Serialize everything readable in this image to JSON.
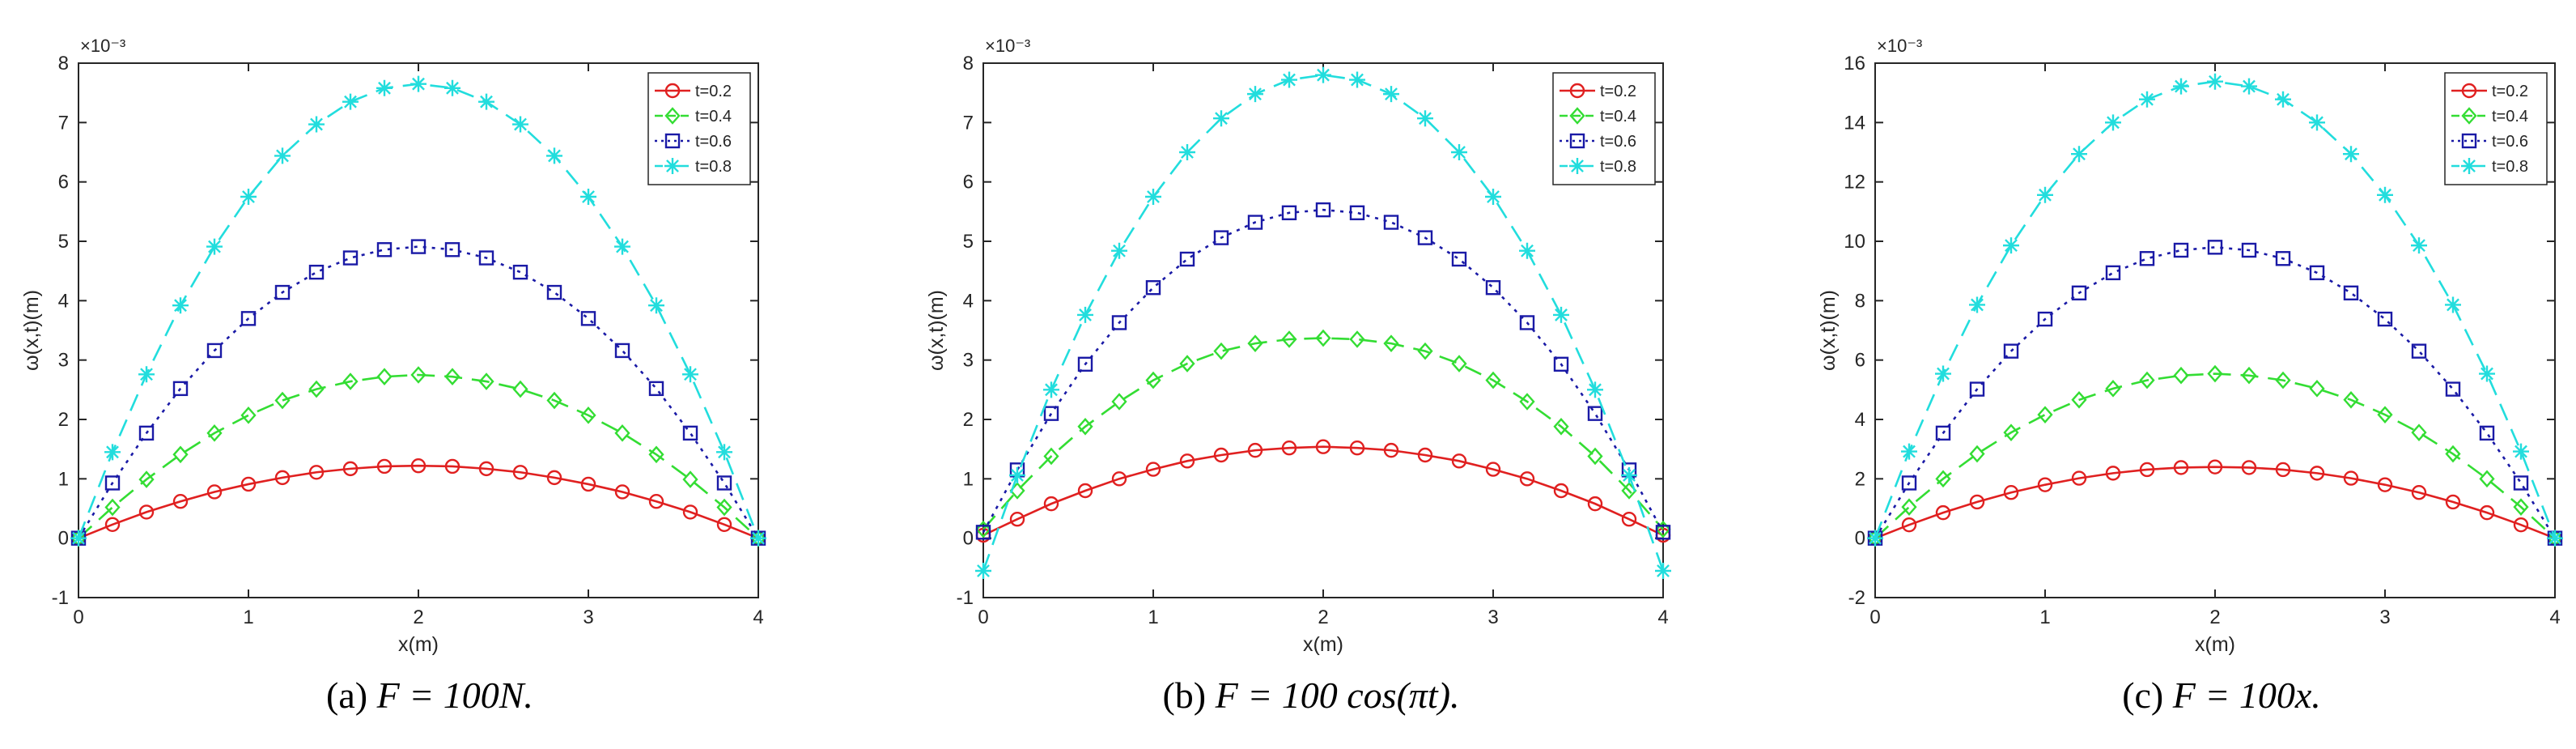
{
  "figure": {
    "captions": [
      {
        "label": "(a)",
        "formula": "F = 100N."
      },
      {
        "label": "(b)",
        "formula": "F = 100 cos(πt)."
      },
      {
        "label": "(c)",
        "formula": "F = 100x."
      }
    ]
  },
  "chart_data": [
    {
      "type": "line",
      "xlabel": "x(m)",
      "ylabel": "ω(x,t)(m)",
      "y_multiplier": "×10⁻³",
      "xlim": [
        0,
        4
      ],
      "ylim": [
        -1,
        8
      ],
      "xticks": [
        0,
        1,
        2,
        3,
        4
      ],
      "yticks": [
        -1,
        0,
        1,
        2,
        3,
        4,
        5,
        6,
        7,
        8
      ],
      "legend_position": "top-right",
      "x": [
        0,
        0.2,
        0.4,
        0.6,
        0.8,
        1.0,
        1.2,
        1.4,
        1.6,
        1.8,
        2.0,
        2.2,
        2.4,
        2.6,
        2.8,
        3.0,
        3.2,
        3.4,
        3.6,
        3.8,
        4.0
      ],
      "series": [
        {
          "name": "t=0.2",
          "color": "#e02020",
          "marker": "circle",
          "dash": "solid",
          "values": [
            0,
            0.23,
            0.44,
            0.62,
            0.78,
            0.91,
            1.02,
            1.11,
            1.17,
            1.21,
            1.22,
            1.21,
            1.17,
            1.11,
            1.02,
            0.91,
            0.78,
            0.62,
            0.44,
            0.23,
            0
          ]
        },
        {
          "name": "t=0.4",
          "color": "#33dd33",
          "marker": "diamond",
          "dash": "dashed",
          "values": [
            0,
            0.52,
            0.99,
            1.41,
            1.77,
            2.07,
            2.32,
            2.51,
            2.64,
            2.72,
            2.75,
            2.72,
            2.64,
            2.51,
            2.32,
            2.07,
            1.77,
            1.41,
            0.99,
            0.52,
            0
          ]
        },
        {
          "name": "t=0.6",
          "color": "#1a1aa6",
          "marker": "square",
          "dash": "dotted",
          "values": [
            0,
            0.93,
            1.77,
            2.52,
            3.16,
            3.7,
            4.14,
            4.48,
            4.72,
            4.86,
            4.91,
            4.86,
            4.72,
            4.48,
            4.14,
            3.7,
            3.16,
            2.52,
            1.77,
            0.93,
            0
          ]
        },
        {
          "name": "t=0.8",
          "color": "#22dddd",
          "marker": "star",
          "dash": "dashed",
          "values": [
            0,
            1.45,
            2.76,
            3.92,
            4.91,
            5.75,
            6.44,
            6.97,
            7.35,
            7.58,
            7.65,
            7.58,
            7.35,
            6.97,
            6.44,
            5.75,
            4.91,
            3.92,
            2.76,
            1.45,
            0
          ]
        }
      ]
    },
    {
      "type": "line",
      "xlabel": "x(m)",
      "ylabel": "ω(x,t)(m)",
      "y_multiplier": "×10⁻³",
      "xlim": [
        0,
        4
      ],
      "ylim": [
        -1,
        8
      ],
      "xticks": [
        0,
        1,
        2,
        3,
        4
      ],
      "yticks": [
        -1,
        0,
        1,
        2,
        3,
        4,
        5,
        6,
        7,
        8
      ],
      "legend_position": "top-right",
      "x": [
        0,
        0.2,
        0.4,
        0.6,
        0.8,
        1.0,
        1.2,
        1.4,
        1.6,
        1.8,
        2.0,
        2.2,
        2.4,
        2.6,
        2.8,
        3.0,
        3.2,
        3.4,
        3.6,
        3.8,
        4.0
      ],
      "series": [
        {
          "name": "t=0.2",
          "color": "#e02020",
          "marker": "circle",
          "dash": "solid",
          "values": [
            0.05,
            0.32,
            0.58,
            0.8,
            1.0,
            1.16,
            1.3,
            1.4,
            1.48,
            1.52,
            1.54,
            1.52,
            1.48,
            1.4,
            1.3,
            1.16,
            1.0,
            0.8,
            0.58,
            0.32,
            0.05
          ]
        },
        {
          "name": "t=0.4",
          "color": "#33dd33",
          "marker": "diamond",
          "dash": "dashed",
          "values": [
            0.15,
            0.8,
            1.38,
            1.88,
            2.3,
            2.66,
            2.94,
            3.15,
            3.28,
            3.35,
            3.37,
            3.35,
            3.28,
            3.15,
            2.94,
            2.66,
            2.3,
            1.88,
            1.38,
            0.8,
            0.15
          ]
        },
        {
          "name": "t=0.6",
          "color": "#1a1aa6",
          "marker": "square",
          "dash": "dotted",
          "values": [
            0.1,
            1.15,
            2.1,
            2.93,
            3.63,
            4.22,
            4.7,
            5.06,
            5.32,
            5.48,
            5.53,
            5.48,
            5.32,
            5.06,
            4.7,
            4.22,
            3.63,
            2.93,
            2.1,
            1.15,
            0.1
          ]
        },
        {
          "name": "t=0.8",
          "color": "#22dddd",
          "marker": "star",
          "dash": "dashed",
          "values": [
            -0.55,
            1.06,
            2.5,
            3.76,
            4.84,
            5.75,
            6.5,
            7.07,
            7.48,
            7.72,
            7.8,
            7.72,
            7.48,
            7.07,
            6.5,
            5.75,
            4.84,
            3.76,
            2.5,
            1.06,
            -0.55
          ]
        }
      ]
    },
    {
      "type": "line",
      "xlabel": "x(m)",
      "ylabel": "ω(x,t)(m)",
      "y_multiplier": "×10⁻³",
      "xlim": [
        0,
        4
      ],
      "ylim": [
        -2,
        16
      ],
      "xticks": [
        0,
        1,
        2,
        3,
        4
      ],
      "yticks": [
        -2,
        0,
        2,
        4,
        6,
        8,
        10,
        12,
        14,
        16
      ],
      "legend_position": "top-right",
      "x": [
        0,
        0.2,
        0.4,
        0.6,
        0.8,
        1.0,
        1.2,
        1.4,
        1.6,
        1.8,
        2.0,
        2.2,
        2.4,
        2.6,
        2.8,
        3.0,
        3.2,
        3.4,
        3.6,
        3.8,
        4.0
      ],
      "series": [
        {
          "name": "t=0.2",
          "color": "#e02020",
          "marker": "circle",
          "dash": "solid",
          "values": [
            0,
            0.45,
            0.86,
            1.22,
            1.54,
            1.8,
            2.02,
            2.19,
            2.31,
            2.38,
            2.4,
            2.38,
            2.31,
            2.19,
            2.02,
            1.8,
            1.54,
            1.22,
            0.86,
            0.45,
            0
          ]
        },
        {
          "name": "t=0.4",
          "color": "#33dd33",
          "marker": "diamond",
          "dash": "dashed",
          "values": [
            0,
            1.05,
            2.0,
            2.84,
            3.56,
            4.16,
            4.66,
            5.04,
            5.32,
            5.48,
            5.54,
            5.48,
            5.32,
            5.04,
            4.66,
            4.16,
            3.56,
            2.84,
            2.0,
            1.05,
            0
          ]
        },
        {
          "name": "t=0.6",
          "color": "#1a1aa6",
          "marker": "square",
          "dash": "dotted",
          "values": [
            0,
            1.86,
            3.54,
            5.02,
            6.3,
            7.38,
            8.26,
            8.94,
            9.42,
            9.7,
            9.8,
            9.7,
            9.42,
            8.94,
            8.26,
            7.38,
            6.3,
            5.02,
            3.54,
            1.86,
            0
          ]
        },
        {
          "name": "t=0.8",
          "color": "#22dddd",
          "marker": "star",
          "dash": "dashed",
          "values": [
            0,
            2.92,
            5.54,
            7.86,
            9.86,
            11.56,
            12.94,
            14.0,
            14.78,
            15.22,
            15.38,
            15.22,
            14.78,
            14.0,
            12.94,
            11.56,
            9.86,
            7.86,
            5.54,
            2.92,
            0
          ]
        }
      ]
    }
  ]
}
